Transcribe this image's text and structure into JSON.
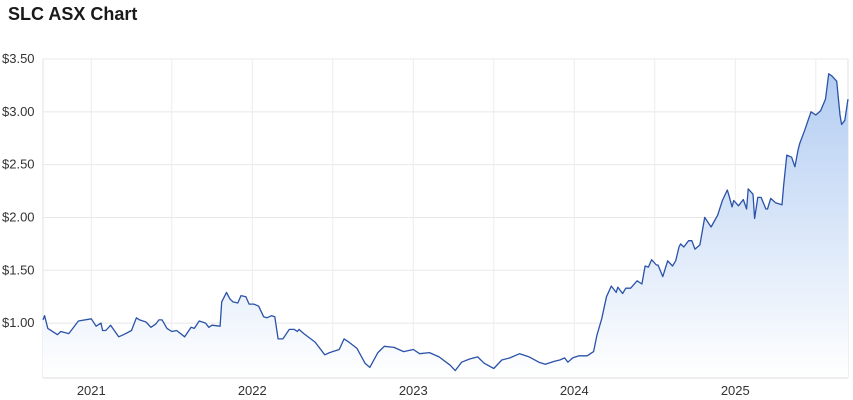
{
  "chart_data": {
    "type": "area",
    "title": "SLC ASX Chart",
    "xlabel": "",
    "ylabel": "",
    "xlim": [
      2020.7,
      2025.7
    ],
    "ylim": [
      0.48,
      3.5
    ],
    "grid": true,
    "line_color": "#2a52a8",
    "fill_top_color": "#b3cdf2",
    "fill_bottom_color": "#ffffff",
    "x_ticks": [
      2021,
      2022,
      2023,
      2024,
      2025
    ],
    "x_tick_labels": [
      "2021",
      "2022",
      "2023",
      "2024",
      "2025"
    ],
    "y_ticks": [
      1.0,
      1.5,
      2.0,
      2.5,
      3.0,
      3.5
    ],
    "y_tick_labels": [
      "$1.00",
      "$1.50",
      "$2.00",
      "$2.50",
      "$3.00",
      "$3.50"
    ],
    "x": [
      2020.7,
      2020.71,
      2020.73,
      2020.79,
      2020.81,
      2020.86,
      2020.92,
      2021.0,
      2021.03,
      2021.06,
      2021.07,
      2021.09,
      2021.12,
      2021.17,
      2021.2,
      2021.25,
      2021.28,
      2021.3,
      2021.34,
      2021.37,
      2021.4,
      2021.42,
      2021.44,
      2021.47,
      2021.5,
      2021.53,
      2021.58,
      2021.62,
      2021.64,
      2021.67,
      2021.71,
      2021.73,
      2021.75,
      2021.8,
      2021.81,
      2021.84,
      2021.86,
      2021.88,
      2021.91,
      2021.93,
      2021.96,
      2021.98,
      2022.01,
      2022.04,
      2022.07,
      2022.09,
      2022.12,
      2022.14,
      2022.16,
      2022.19,
      2022.23,
      2022.26,
      2022.28,
      2022.29,
      2022.32,
      2022.39,
      2022.45,
      2022.48,
      2022.54,
      2022.57,
      2022.6,
      2022.65,
      2022.7,
      2022.73,
      2022.78,
      2022.82,
      2022.88,
      2022.94,
      2023.0,
      2023.04,
      2023.1,
      2023.16,
      2023.23,
      2023.26,
      2023.3,
      2023.35,
      2023.4,
      2023.44,
      2023.5,
      2023.55,
      2023.6,
      2023.66,
      2023.72,
      2023.78,
      2023.82,
      2023.88,
      2023.91,
      2023.94,
      2023.96,
      2023.99,
      2024.03,
      2024.08,
      2024.12,
      2024.14,
      2024.17,
      2024.2,
      2024.23,
      2024.26,
      2024.27,
      2024.3,
      2024.32,
      2024.35,
      2024.39,
      2024.42,
      2024.44,
      2024.46,
      2024.48,
      2024.51,
      2024.52,
      2024.55,
      2024.58,
      2024.61,
      2024.63,
      2024.65,
      2024.66,
      2024.68,
      2024.71,
      2024.73,
      2024.75,
      2024.78,
      2024.81,
      2024.85,
      2024.89,
      2024.92,
      2024.95,
      2024.96,
      2024.98,
      2024.99,
      2025.02,
      2025.05,
      2025.07,
      2025.08,
      2025.11,
      2025.12,
      2025.14,
      2025.16,
      2025.19,
      2025.2,
      2025.22,
      2025.25,
      2025.29,
      2025.3,
      2025.32,
      2025.35,
      2025.37,
      2025.39,
      2025.4,
      2025.43,
      2025.47,
      2025.5,
      2025.53,
      2025.56,
      2025.58,
      2025.6,
      2025.63,
      2025.65,
      2025.66,
      2025.68,
      2025.7
    ],
    "y": [
      1.03,
      1.07,
      0.95,
      0.89,
      0.92,
      0.9,
      1.02,
      1.04,
      0.97,
      1.0,
      0.93,
      0.93,
      0.98,
      0.87,
      0.89,
      0.93,
      1.05,
      1.03,
      1.01,
      0.96,
      0.99,
      1.03,
      1.03,
      0.95,
      0.92,
      0.93,
      0.87,
      0.96,
      0.95,
      1.02,
      1.0,
      0.96,
      0.98,
      0.97,
      1.2,
      1.29,
      1.23,
      1.2,
      1.19,
      1.26,
      1.25,
      1.18,
      1.18,
      1.16,
      1.06,
      1.05,
      1.07,
      1.06,
      0.85,
      0.85,
      0.94,
      0.94,
      0.92,
      0.94,
      0.9,
      0.82,
      0.7,
      0.72,
      0.75,
      0.85,
      0.82,
      0.76,
      0.62,
      0.58,
      0.72,
      0.78,
      0.77,
      0.73,
      0.75,
      0.71,
      0.72,
      0.68,
      0.6,
      0.55,
      0.63,
      0.66,
      0.68,
      0.62,
      0.57,
      0.65,
      0.67,
      0.71,
      0.68,
      0.63,
      0.61,
      0.64,
      0.65,
      0.67,
      0.63,
      0.67,
      0.69,
      0.69,
      0.73,
      0.88,
      1.04,
      1.25,
      1.35,
      1.29,
      1.34,
      1.28,
      1.33,
      1.33,
      1.4,
      1.37,
      1.54,
      1.53,
      1.6,
      1.55,
      1.55,
      1.44,
      1.59,
      1.54,
      1.59,
      1.72,
      1.75,
      1.72,
      1.78,
      1.78,
      1.7,
      1.74,
      2.0,
      1.91,
      2.02,
      2.16,
      2.26,
      2.21,
      2.1,
      2.16,
      2.11,
      2.17,
      2.08,
      2.27,
      2.22,
      1.99,
      2.19,
      2.19,
      2.08,
      2.08,
      2.18,
      2.14,
      2.12,
      2.3,
      2.59,
      2.57,
      2.48,
      2.64,
      2.7,
      2.82,
      3.0,
      2.97,
      3.01,
      3.12,
      3.36,
      3.34,
      3.29,
      2.97,
      2.88,
      2.92,
      3.12
    ]
  }
}
